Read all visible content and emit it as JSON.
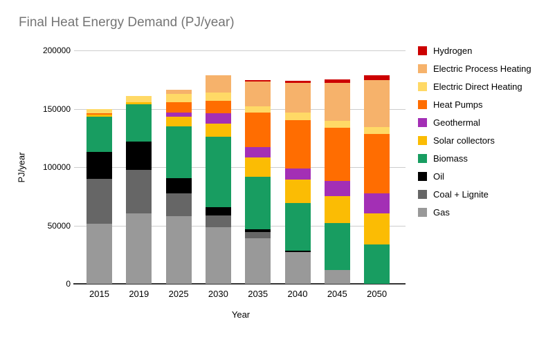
{
  "chart_data": {
    "type": "bar",
    "stacked": true,
    "title": "Final Heat Energy Demand (PJ/year)",
    "xlabel": "Year",
    "ylabel": "PJ/year",
    "ylim": [
      0,
      200000
    ],
    "yticks": [
      0,
      50000,
      100000,
      150000,
      200000
    ],
    "grid": true,
    "legend_position": "right",
    "categories": [
      "2015",
      "2019",
      "2025",
      "2030",
      "2035",
      "2040",
      "2045",
      "2050"
    ],
    "series": [
      {
        "name": "Hydrogen",
        "color": "#CC0000",
        "values": [
          0,
          0,
          0,
          0,
          1000,
          1500,
          3000,
          4500
        ]
      },
      {
        "name": "Electric Process Heating",
        "color": "#F6B26B",
        "values": [
          0,
          0,
          4000,
          14500,
          21500,
          26000,
          32500,
          40000
        ]
      },
      {
        "name": "Electric Direct Heating",
        "color": "#FFD966",
        "values": [
          3500,
          5500,
          7000,
          7000,
          5500,
          6500,
          6000,
          6000
        ]
      },
      {
        "name": "Heat Pumps",
        "color": "#FF6D01",
        "values": [
          1000,
          0,
          9000,
          11000,
          29500,
          41000,
          45500,
          51000
        ]
      },
      {
        "name": "Geothermal",
        "color": "#A32FB5",
        "values": [
          0,
          0,
          3500,
          8500,
          8500,
          9500,
          13000,
          17000
        ]
      },
      {
        "name": "Solar collectors",
        "color": "#FBBC04",
        "values": [
          1500,
          1500,
          8000,
          11500,
          17000,
          20000,
          23000,
          26500
        ]
      },
      {
        "name": "Biomass",
        "color": "#189D61",
        "values": [
          30500,
          32000,
          44500,
          60500,
          44500,
          41000,
          40000,
          34000
        ]
      },
      {
        "name": "Oil",
        "color": "#000000",
        "values": [
          23000,
          24500,
          13000,
          7000,
          2500,
          1500,
          0,
          0
        ]
      },
      {
        "name": "Coal + Lignite",
        "color": "#666666",
        "values": [
          38500,
          37000,
          19500,
          10000,
          5500,
          0,
          0,
          0
        ]
      },
      {
        "name": "Gas",
        "color": "#999999",
        "values": [
          51500,
          60500,
          58000,
          48500,
          39000,
          27000,
          12000,
          0
        ]
      }
    ]
  },
  "colors": {
    "background": "#ffffff",
    "title_text": "#757575",
    "axis_text": "#000000",
    "gridline": "#cccccc",
    "axis_line": "#333333"
  }
}
